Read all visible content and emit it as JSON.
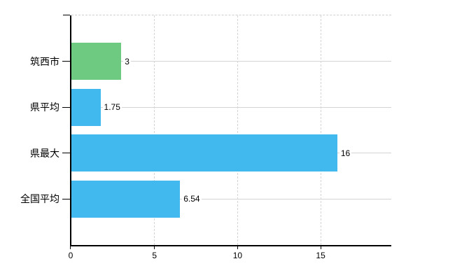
{
  "colors": {
    "background": "#ffffff",
    "axis": "#000000",
    "text": "#000000",
    "gridline": "#d4d4d4",
    "top_border": "#d0d0d0",
    "green_bar": "#6ec981",
    "blue_bar": "#41b8ee"
  },
  "chart_data": {
    "type": "bar",
    "orientation": "horizontal",
    "title": "",
    "xlabel": "",
    "ylabel": "",
    "categories": [
      "筑西市",
      "県平均",
      "県最大",
      "全国平均"
    ],
    "values": [
      3,
      1.75,
      16,
      6.54
    ],
    "value_labels": [
      "3",
      "1.75",
      "16",
      "6.54"
    ],
    "bar_colors": [
      "#6ec981",
      "#41b8ee",
      "#41b8ee",
      "#41b8ee"
    ],
    "x_ticks": [
      {
        "value": 0,
        "label": "0"
      },
      {
        "value": 5,
        "label": "5"
      },
      {
        "value": 10,
        "label": "10"
      },
      {
        "value": 15,
        "label": "15"
      }
    ],
    "xlim": [
      0,
      19.25
    ],
    "grid": true,
    "legend": false
  }
}
